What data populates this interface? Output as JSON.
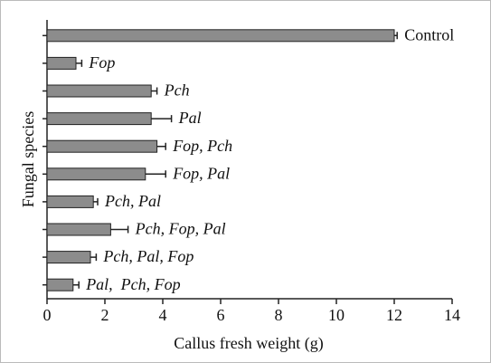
{
  "chart_data": {
    "type": "bar",
    "orientation": "horizontal",
    "x_label": "Callus fresh weight (g)",
    "y_label": "Fungal species",
    "categories": [
      "Control",
      "Fop",
      "Pch",
      "Pal",
      "Fop, Pch",
      "Fop, Pal",
      "Pch, Pal",
      "Pch, Fop, Pal",
      "Pch, Pal, Fop",
      "Pal,  Pch, Fop"
    ],
    "values": [
      12.0,
      1.0,
      3.6,
      3.6,
      3.8,
      3.4,
      1.6,
      2.2,
      1.5,
      0.9
    ],
    "errors": [
      0.1,
      0.2,
      0.2,
      0.7,
      0.3,
      0.7,
      0.15,
      0.6,
      0.2,
      0.2
    ],
    "color": "#8c8c8c",
    "xlim": [
      0,
      14
    ],
    "xticks": [
      0,
      2,
      4,
      6,
      8,
      10,
      12,
      14
    ]
  }
}
